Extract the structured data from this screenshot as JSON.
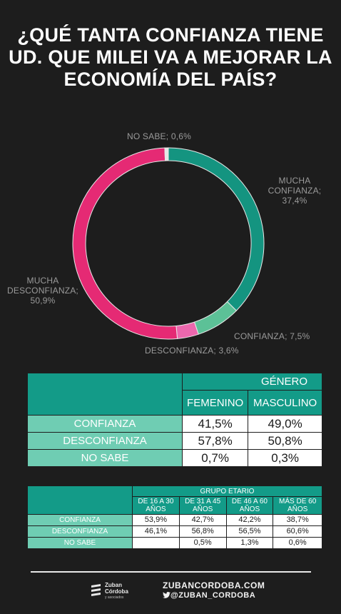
{
  "title": {
    "line1": "¿QUÉ  TANTA CONFIANZA TIENE",
    "line2": "UD. QUE MILEI VA A MEJORAR LA",
    "line3": "ECONOMÍA DEL PAÍS?"
  },
  "chart_data": {
    "type": "pie",
    "variant": "donut",
    "slices": [
      {
        "label_lines": [
          "MUCHA",
          "CONFIANZA; 37,4%"
        ],
        "category": "MUCHA CONFIANZA",
        "value": 37.4,
        "color": "#149480"
      },
      {
        "label_lines": [
          "CONFIANZA; 7,5%"
        ],
        "category": "CONFIANZA",
        "value": 7.5,
        "color": "#5cc197"
      },
      {
        "label_lines": [
          "DESCONFIANZA; 3,6%"
        ],
        "category": "DESCONFIANZA",
        "value": 3.6,
        "color": "#ec67ad"
      },
      {
        "label_lines": [
          "MUCHA",
          "DESCONFIANZA;",
          "50,9%"
        ],
        "category": "MUCHA DESCONFIANZA",
        "value": 50.9,
        "color": "#e52a74"
      },
      {
        "label_lines": [
          "NO SABE; 0,6%"
        ],
        "category": "NO SABE",
        "value": 0.6,
        "color": "#e6e6e6"
      }
    ]
  },
  "table_genero": {
    "group_header": "GÉNERO",
    "columns": [
      "FEMENINO",
      "MASCULINO"
    ],
    "rows": [
      {
        "label": "CONFIANZA",
        "values": [
          "41,5%",
          "49,0%"
        ]
      },
      {
        "label": "DESCONFIANZA",
        "values": [
          "57,8%",
          "50,8%"
        ]
      },
      {
        "label": "NO SABE",
        "values": [
          "0,7%",
          "0,3%"
        ]
      }
    ]
  },
  "table_edad": {
    "group_header": "GRUPO ETARIO",
    "columns": [
      {
        "l1": "DE 16 A 30",
        "l2": "AÑOS"
      },
      {
        "l1": "DE 31 A 45",
        "l2": "AÑOS"
      },
      {
        "l1": "DE 46 A 60",
        "l2": "AÑOS"
      },
      {
        "l1": "MÁS DE 60",
        "l2": "AÑOS"
      }
    ],
    "rows": [
      {
        "label": "CONFIANZA",
        "values": [
          "53,9%",
          "42,7%",
          "42,2%",
          "38,7%"
        ]
      },
      {
        "label": "DESCONFIANZA",
        "values": [
          "46,1%",
          "56,8%",
          "56,5%",
          "60,6%"
        ]
      },
      {
        "label": "NO SABE",
        "values": [
          "",
          "0,5%",
          "1,3%",
          "0,6%"
        ]
      }
    ]
  },
  "footer": {
    "logo_line1": "Zuban",
    "logo_line2": "Córdoba",
    "logo_sub": "y asociados",
    "website": "ZUBANCORDOBA.COM",
    "twitter_icon": "twitter-bird-icon",
    "handle": "@ZUBAN_CORDOBA"
  },
  "colors": {
    "background": "#1d1d1d",
    "header_teal": "#139b88",
    "row_label_teal": "#6fcdb3",
    "label_gray": "#9a9a9a"
  }
}
